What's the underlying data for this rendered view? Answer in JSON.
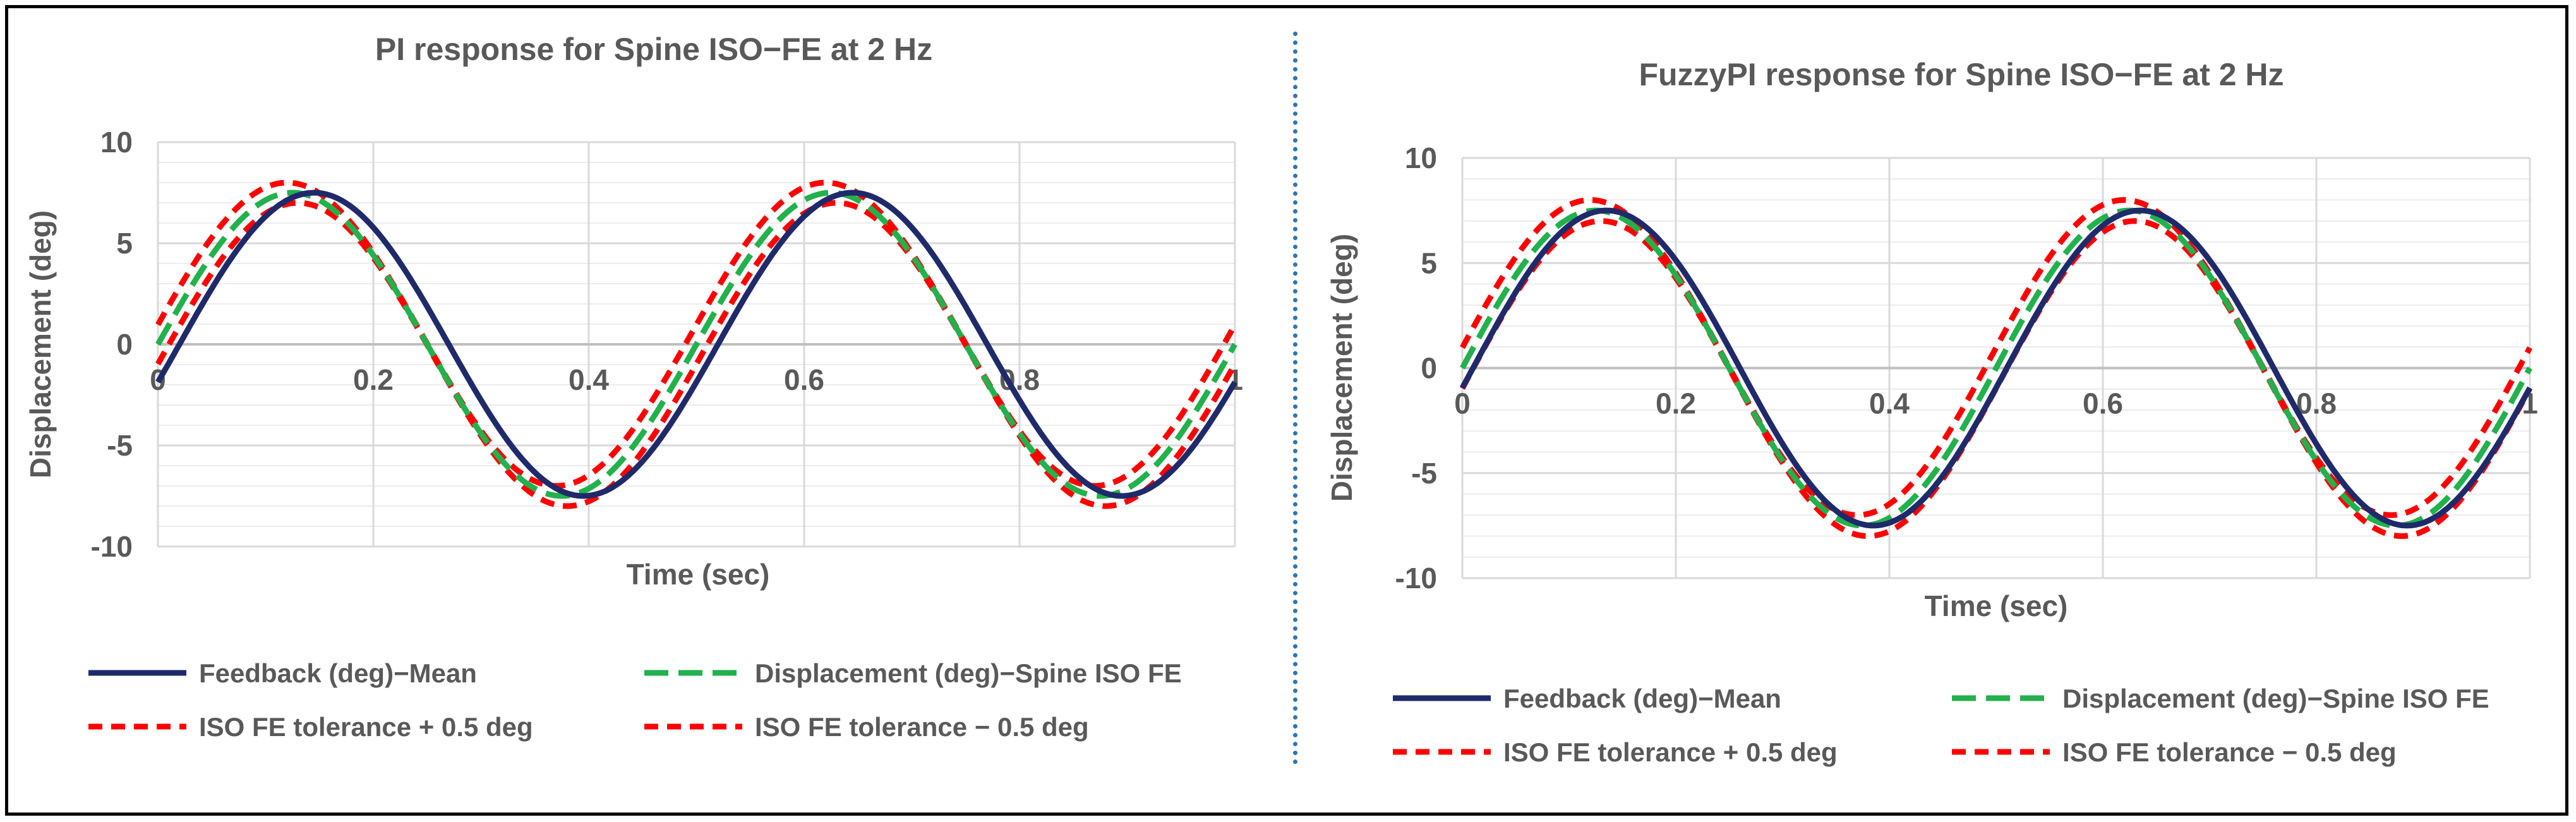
{
  "chart_data": [
    {
      "type": "line",
      "title": "PI response for Spine ISO−FE at 2 Hz",
      "xlabel": "Time (sec)",
      "ylabel": "Displacement (deg)",
      "xlim": [
        0,
        1
      ],
      "ylim": [
        -10,
        10
      ],
      "x_ticks": [
        "0",
        "0.2",
        "0.4",
        "0.6",
        "0.8",
        "1"
      ],
      "y_ticks": [
        "10",
        "5",
        "0",
        "-5",
        "-10"
      ],
      "grid": true,
      "legend_position": "bottom",
      "frequency_hz": 2,
      "series": [
        {
          "name": "Feedback (deg)−Mean",
          "amplitude": 7.5,
          "phase_shift_sec": 0.02,
          "color": "#1f2a6b",
          "dash": "solid"
        },
        {
          "name": "Displacement (deg)−Spine ISO FE",
          "amplitude": 7.5,
          "phase_shift_sec": 0.0,
          "color": "#22b14c",
          "dash": "long-dash"
        },
        {
          "name": "ISO FE tolerance + 0.5 deg",
          "amplitude": 7.5,
          "offset_deg": 0.5,
          "phase_shift_sec": -0.005,
          "color": "#ff0000",
          "dash": "dash"
        },
        {
          "name": "ISO FE tolerance − 0.5 deg",
          "amplitude": 7.5,
          "offset_deg": -0.5,
          "phase_shift_sec": 0.005,
          "color": "#ff0000",
          "dash": "dash"
        }
      ]
    },
    {
      "type": "line",
      "title": "FuzzyPI response for Spine ISO−FE at 2 Hz",
      "xlabel": "Time (sec)",
      "ylabel": "Displacement (deg)",
      "xlim": [
        0,
        1
      ],
      "ylim": [
        -10,
        10
      ],
      "x_ticks": [
        "0",
        "0.2",
        "0.4",
        "0.6",
        "0.8",
        "1"
      ],
      "y_ticks": [
        "10",
        "5",
        "0",
        "-5",
        "-10"
      ],
      "grid": true,
      "legend_position": "bottom",
      "frequency_hz": 2,
      "series": [
        {
          "name": "Feedback (deg)−Mean",
          "amplitude": 7.5,
          "phase_shift_sec": 0.01,
          "color": "#1f2a6b",
          "dash": "solid"
        },
        {
          "name": "Displacement (deg)−Spine ISO FE",
          "amplitude": 7.5,
          "phase_shift_sec": 0.0,
          "color": "#22b14c",
          "dash": "long-dash"
        },
        {
          "name": "ISO FE tolerance + 0.5 deg",
          "amplitude": 7.5,
          "offset_deg": 0.5,
          "phase_shift_sec": -0.005,
          "color": "#ff0000",
          "dash": "dash"
        },
        {
          "name": "ISO FE tolerance − 0.5 deg",
          "amplitude": 7.5,
          "offset_deg": -0.5,
          "phase_shift_sec": 0.005,
          "color": "#ff0000",
          "dash": "dash"
        }
      ]
    }
  ]
}
